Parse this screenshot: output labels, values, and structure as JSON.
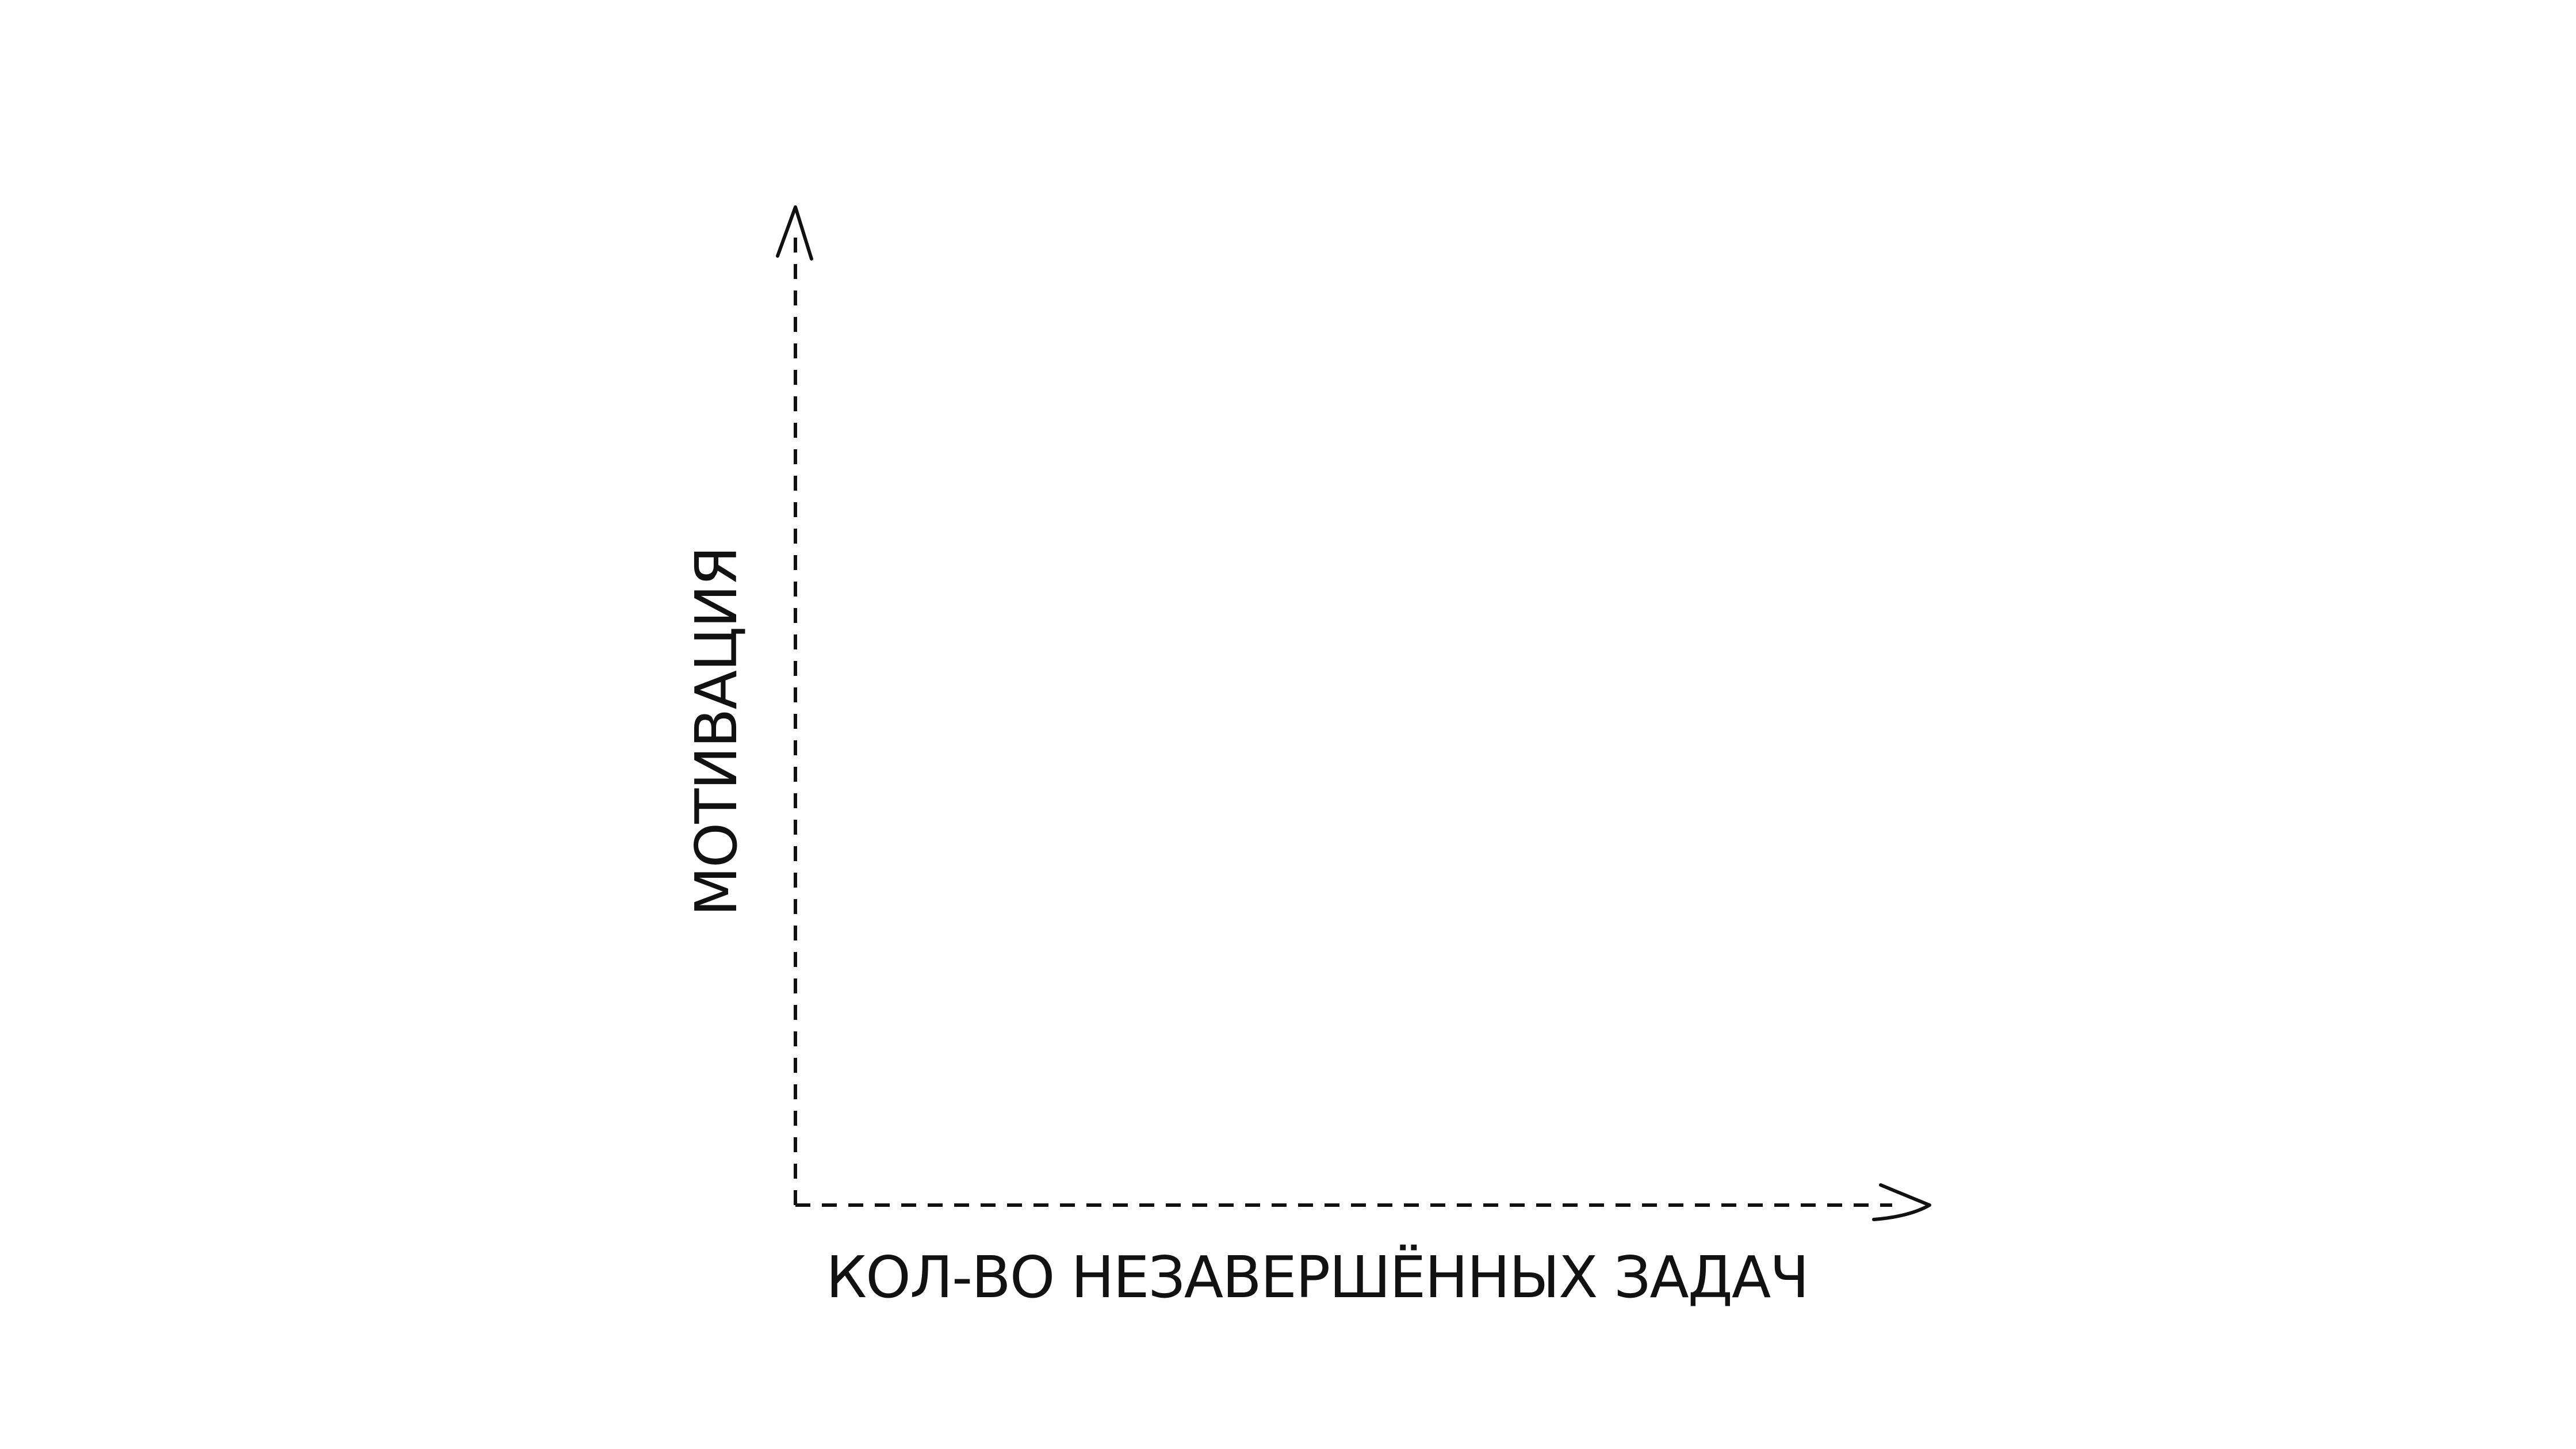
{
  "chart_data": {
    "type": "scatter",
    "title": "",
    "xlabel": "КОЛ-ВО НЕЗАВЕРШЁННЫХ ЗАДАЧ",
    "ylabel": "МОТИВАЦИЯ",
    "series": [],
    "grid": false,
    "axis_style": "dashed",
    "axis_arrows": true,
    "colors": {
      "ink": "#111111",
      "background": "#ffffff"
    }
  }
}
